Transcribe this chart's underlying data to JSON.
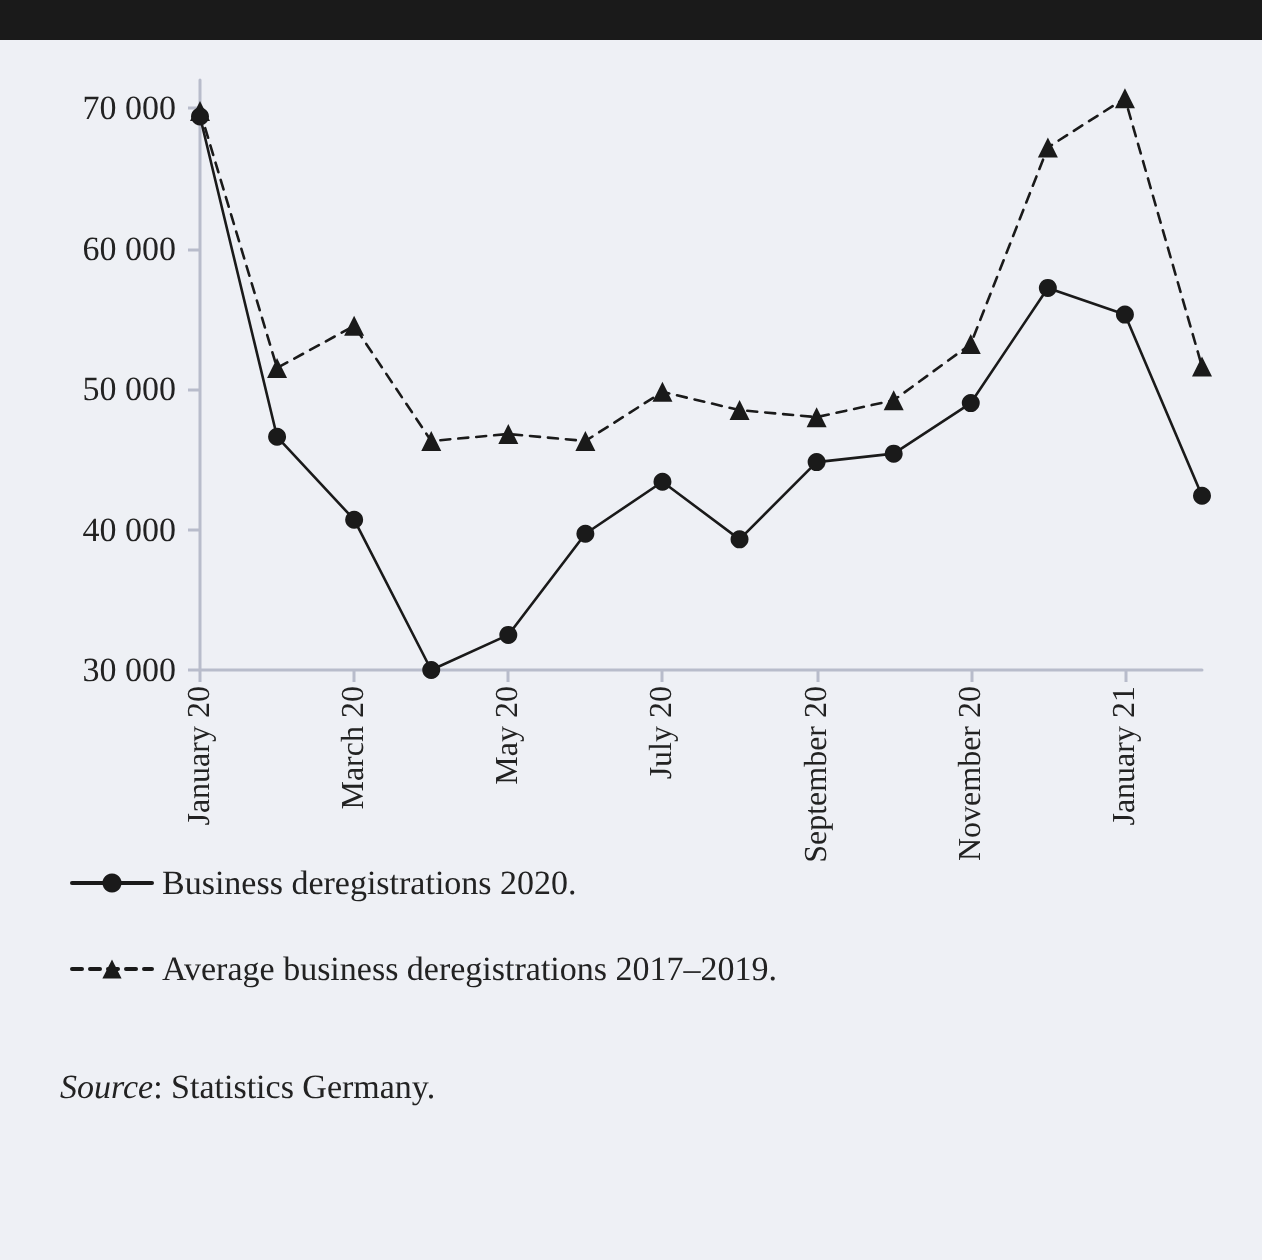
{
  "chart_data": {
    "type": "line",
    "categories": [
      "January 20",
      null,
      "March 20",
      null,
      "May 20",
      null,
      "July 20",
      null,
      "September 20",
      null,
      "November 20",
      null,
      "January 21",
      null
    ],
    "series": [
      {
        "name": "Business deregistrations 2020.",
        "color": "#1a1a1a",
        "marker": "circle",
        "line_style": "solid",
        "values": [
          69400,
          46600,
          40700,
          30000,
          32500,
          39700,
          43400,
          39300,
          44800,
          45400,
          49000,
          57200,
          55300,
          42400
        ]
      },
      {
        "name": "Average business deregistrations 2017–2019.",
        "color": "#1a1a1a",
        "marker": "triangle",
        "line_style": "dashed",
        "values": [
          69800,
          51500,
          54500,
          46300,
          46800,
          46300,
          49800,
          48500,
          48000,
          49200,
          53200,
          67200,
          70700,
          51600
        ]
      }
    ],
    "ylim": [
      30000,
      72000
    ],
    "yticks": [
      {
        "value": 30000,
        "label": "30 000"
      },
      {
        "value": 40000,
        "label": "40 000"
      },
      {
        "value": 50000,
        "label": "50 000"
      },
      {
        "value": 60000,
        "label": "60 000"
      },
      {
        "value": 70000,
        "label": "70 000"
      }
    ],
    "grid": false,
    "legend": "bottom",
    "annotations": [
      "Source: Statistics Germany."
    ]
  }
}
